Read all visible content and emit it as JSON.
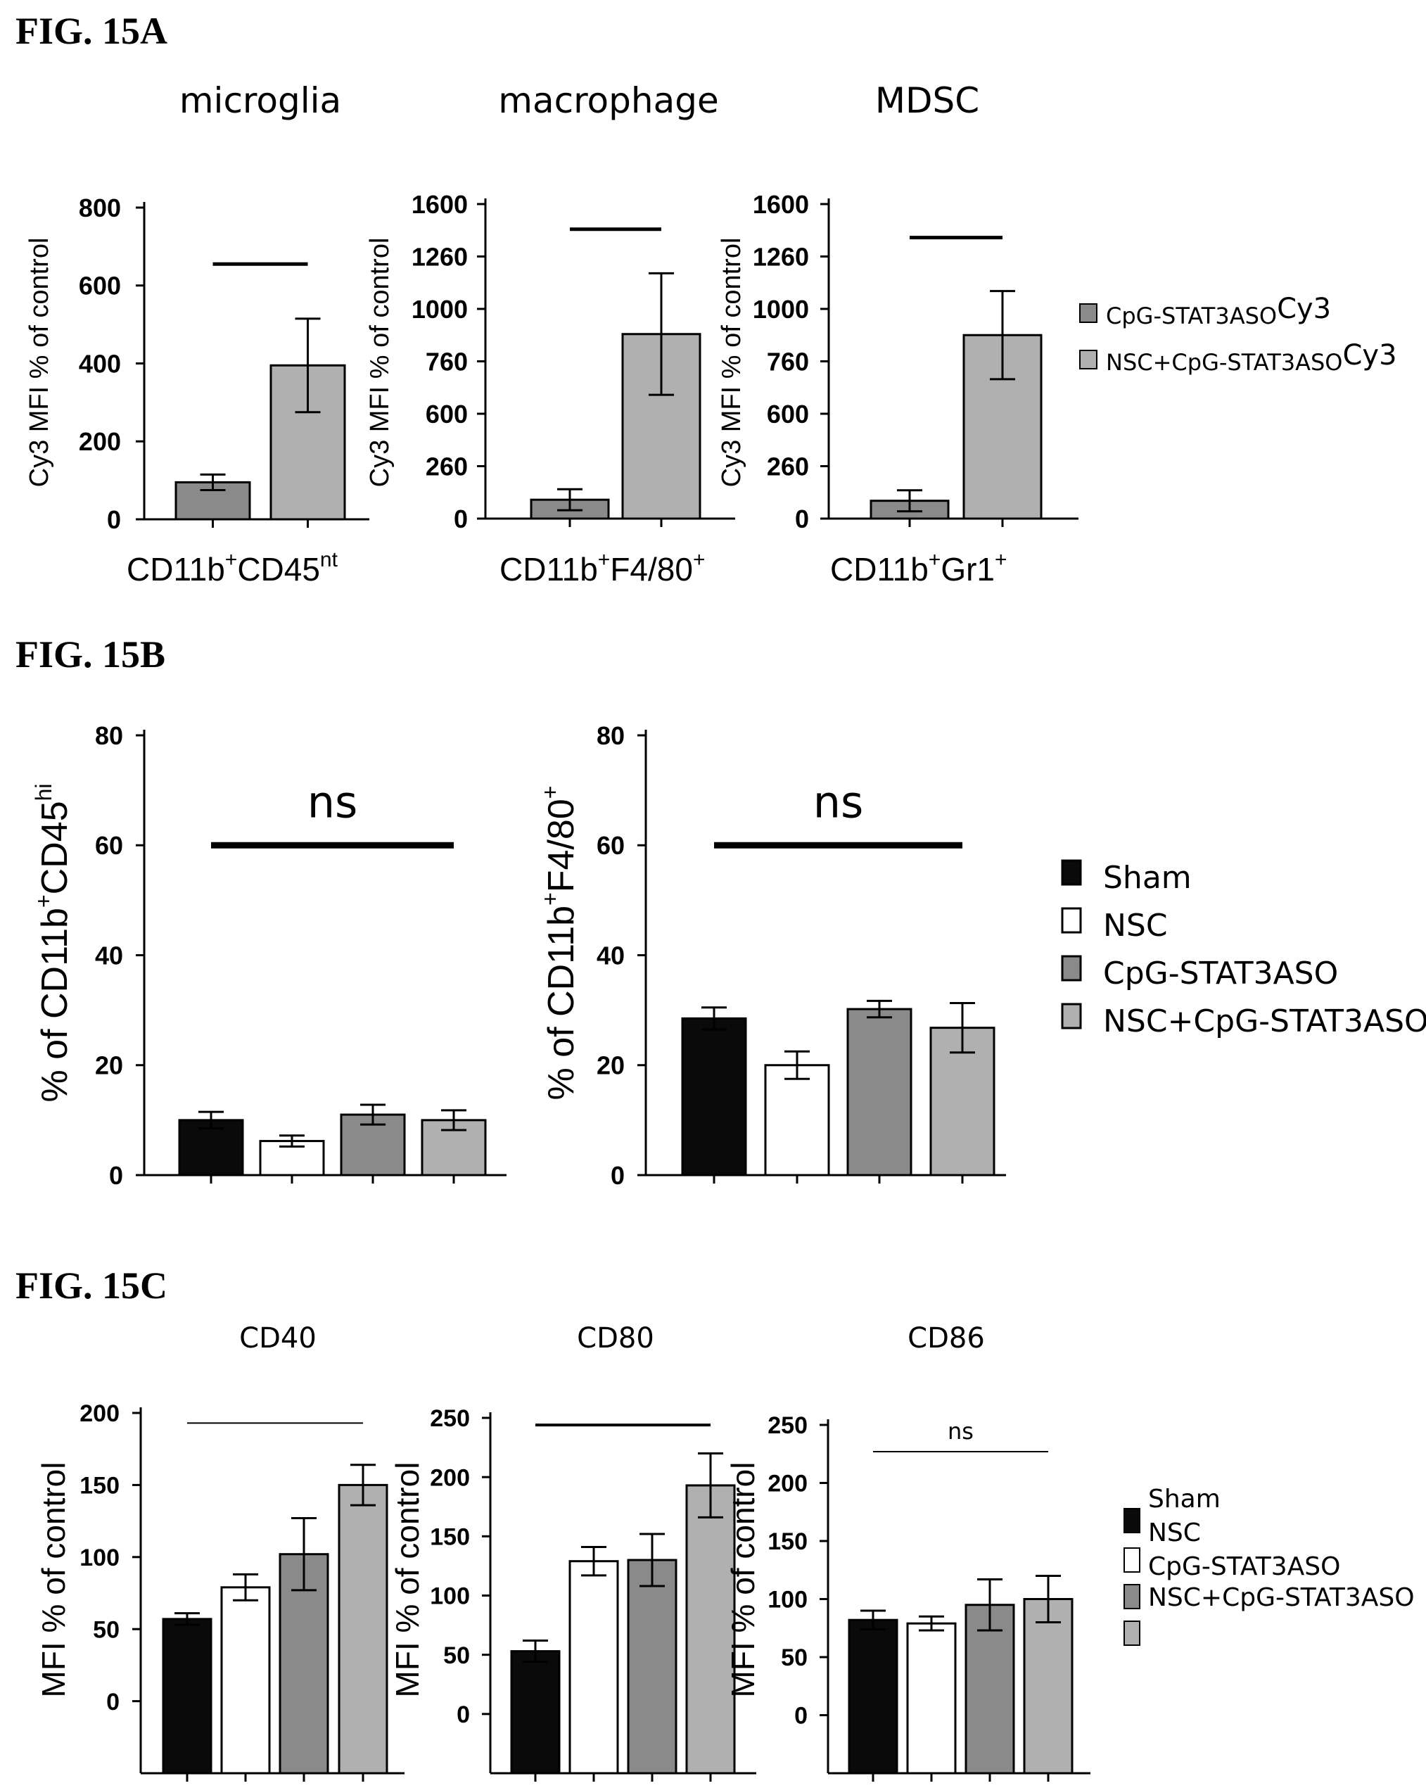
{
  "figure_labels": [
    "FIG. 15A",
    "FIG. 15B",
    "FIG. 15C"
  ],
  "colors": {
    "black": "#0a0a0a",
    "white": "#ffffff",
    "dark_gray": "#8a8a8a",
    "light_gray": "#b0b0b0",
    "axis": "#000000"
  },
  "legends": {
    "a": [
      {
        "main": "CpG-STAT3ASO",
        "sub": "Cy3",
        "color": "#8a8a8a"
      },
      {
        "main": "NSC+CpG-STAT3ASO",
        "sub": "Cy3",
        "color": "#b0b0b0"
      }
    ],
    "b": [
      {
        "label": "Sham",
        "color": "#0a0a0a"
      },
      {
        "label": "NSC",
        "color": "#ffffff"
      },
      {
        "label": "CpG-STAT3ASO",
        "color": "#8a8a8a"
      },
      {
        "label": "NSC+CpG-STAT3ASO",
        "color": "#b0b0b0"
      }
    ],
    "c": {
      "labels": [
        "Sham",
        "NSC",
        "CpG-STAT3ASO",
        "NSC+CpG-STAT3ASO"
      ],
      "swatches": [
        "#0a0a0a",
        "#ffffff",
        "#8a8a8a",
        "#b0b0b0"
      ]
    }
  },
  "chart_data": [
    {
      "panel": "A",
      "type": "bar",
      "title": "microglia",
      "ylabel": "Cy3 MFI % of control",
      "xlabel": {
        "main": "CD11b",
        "sup1": "+",
        "mid": "CD45",
        "sup2": "nt"
      },
      "yticks": [
        "800",
        "600",
        "400",
        "200",
        "0"
      ],
      "tick_values": [
        800,
        600,
        400,
        200,
        0
      ],
      "ylim": [
        0,
        800
      ],
      "bar_colors": [
        "#8a8a8a",
        "#b0b0b0"
      ],
      "values": [
        95,
        395
      ],
      "errors": [
        20,
        120
      ],
      "significance": {
        "bars": [
          0,
          1
        ],
        "level": 655,
        "label": ""
      }
    },
    {
      "panel": "A",
      "type": "bar",
      "title": "macrophage",
      "ylabel": "Cy3 MFI % of control",
      "xlabel": {
        "main": "CD11b",
        "sup1": "+",
        "mid": "F4/80",
        "sup2": "+"
      },
      "yticks": [
        "1600",
        "1260",
        "1000",
        "760",
        "600",
        "260",
        "0"
      ],
      "tick_values": [
        1600,
        1350,
        1100,
        850,
        600,
        350,
        100
      ],
      "ylim": [
        100,
        1600
      ],
      "bar_colors": [
        "#8a8a8a",
        "#b0b0b0"
      ],
      "values": [
        190,
        980
      ],
      "errors": [
        50,
        290
      ],
      "significance": {
        "bars": [
          0,
          1
        ],
        "level": 1480,
        "label": ""
      }
    },
    {
      "panel": "A",
      "type": "bar",
      "title": "MDSC",
      "ylabel": "Cy3 MFI % of control",
      "xlabel": {
        "main": "CD11b",
        "sup1": "+",
        "mid": "Gr1",
        "sup2": "+"
      },
      "yticks": [
        "1600",
        "1260",
        "1000",
        "760",
        "600",
        "260",
        "0"
      ],
      "tick_values": [
        1600,
        1350,
        1100,
        850,
        600,
        350,
        100
      ],
      "ylim": [
        100,
        1600
      ],
      "bar_colors": [
        "#8a8a8a",
        "#b0b0b0"
      ],
      "values": [
        185,
        975
      ],
      "errors": [
        50,
        210
      ],
      "significance": {
        "bars": [
          0,
          1
        ],
        "level": 1440,
        "label": ""
      }
    },
    {
      "panel": "B",
      "type": "bar",
      "ylabel": {
        "main": "% of CD11b",
        "sup1": "+",
        "mid": "CD45",
        "sup2": "hi"
      },
      "yticks": [
        "80",
        "60",
        "40",
        "20",
        "0"
      ],
      "tick_values": [
        80,
        60,
        40,
        20,
        0
      ],
      "ylim": [
        0,
        80
      ],
      "bar_colors": [
        "#0a0a0a",
        "#ffffff",
        "#8a8a8a",
        "#b0b0b0"
      ],
      "values": [
        10,
        6.2,
        11,
        10
      ],
      "errors": [
        1.5,
        1.0,
        1.8,
        1.8
      ],
      "significance": {
        "bars": [
          0,
          3
        ],
        "level": 60,
        "label": "ns"
      }
    },
    {
      "panel": "B",
      "type": "bar",
      "ylabel": {
        "main": "% of CD11b",
        "sup1": "+",
        "mid": "F4/80",
        "sup2": "+"
      },
      "yticks": [
        "80",
        "60",
        "40",
        "20",
        "0"
      ],
      "tick_values": [
        80,
        60,
        40,
        20,
        0
      ],
      "ylim": [
        0,
        80
      ],
      "bar_colors": [
        "#0a0a0a",
        "#ffffff",
        "#8a8a8a",
        "#b0b0b0"
      ],
      "values": [
        28.5,
        20,
        30.2,
        26.8
      ],
      "errors": [
        2.0,
        2.5,
        1.5,
        4.5
      ],
      "significance": {
        "bars": [
          0,
          3
        ],
        "level": 60,
        "label": "ns"
      }
    },
    {
      "panel": "C",
      "type": "bar",
      "title": "CD40",
      "ylabel": "MFI % of control",
      "yticks": [
        "200",
        "150",
        "100",
        "50",
        "0"
      ],
      "tick_values": [
        200,
        150,
        100,
        50,
        0
      ],
      "ylim": [
        -50,
        200
      ],
      "bar_colors": [
        "#0a0a0a",
        "#ffffff",
        "#8a8a8a",
        "#b0b0b0"
      ],
      "values": [
        57,
        79,
        102,
        150
      ],
      "errors": [
        4,
        9,
        25,
        14
      ],
      "significance": {
        "bars": [
          0,
          3
        ],
        "level": 193,
        "label": ""
      }
    },
    {
      "panel": "C",
      "type": "bar",
      "title": "CD80",
      "ylabel": "MFI % of control",
      "yticks": [
        "250",
        "200",
        "150",
        "100",
        "50",
        "0"
      ],
      "tick_values": [
        250,
        200,
        150,
        100,
        50,
        0
      ],
      "ylim": [
        -50,
        250
      ],
      "bar_colors": [
        "#0a0a0a",
        "#ffffff",
        "#8a8a8a",
        "#b0b0b0"
      ],
      "values": [
        53,
        129,
        130,
        193
      ],
      "errors": [
        9,
        12,
        22,
        27
      ],
      "significance": {
        "bars": [
          0,
          3
        ],
        "level": 244,
        "label": ""
      }
    },
    {
      "panel": "C",
      "type": "bar",
      "title": "CD86",
      "ylabel": "MFI % of control",
      "yticks": [
        "250",
        "200",
        "150",
        "100",
        "50",
        "0"
      ],
      "tick_values": [
        250,
        200,
        150,
        100,
        50,
        0
      ],
      "ylim": [
        -50,
        250
      ],
      "bar_colors": [
        "#0a0a0a",
        "#ffffff",
        "#8a8a8a",
        "#b0b0b0"
      ],
      "values": [
        82,
        79,
        95,
        100
      ],
      "errors": [
        8,
        6,
        22,
        20
      ],
      "significance": {
        "bars": [
          0,
          3
        ],
        "level": 227,
        "label": "ns"
      }
    }
  ]
}
